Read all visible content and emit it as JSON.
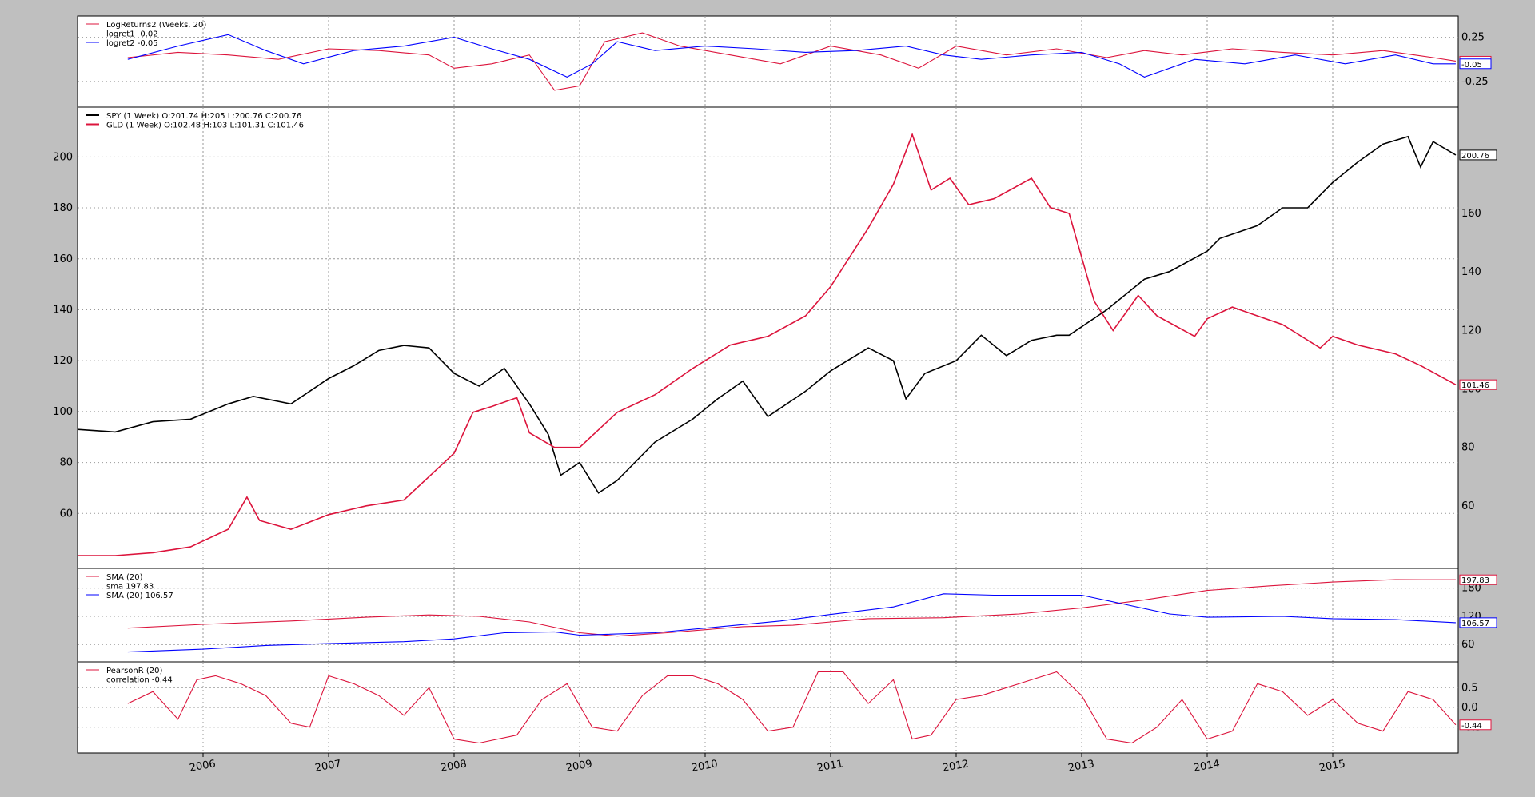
{
  "colors": {
    "red": "#dc143c",
    "blue": "#0000ff",
    "black": "#000000",
    "background": "#bfbfbf",
    "panel": "#ffffff"
  },
  "chart_data": [
    {
      "type": "line",
      "panel": "logreturns",
      "legend": [
        "LogReturns2 (Weeks, 20)",
        "logret1 -0.02",
        "logret2 -0.05"
      ],
      "y_ticks": [
        "0.25",
        "-0.25"
      ],
      "ylim": [
        -0.45,
        0.4
      ],
      "last_value_labels": [
        "-0.02",
        "-0.05"
      ],
      "series": [
        {
          "name": "logret1",
          "color": "#dc143c",
          "x": [
            2005.4,
            2005.8,
            2006.2,
            2006.6,
            2007.0,
            2007.4,
            2007.8,
            2008.0,
            2008.3,
            2008.6,
            2008.8,
            2009.0,
            2009.2,
            2009.5,
            2009.8,
            2010.2,
            2010.6,
            2011.0,
            2011.4,
            2011.7,
            2012.0,
            2012.4,
            2012.8,
            2013.2,
            2013.5,
            2013.8,
            2014.2,
            2014.6,
            2015.0,
            2015.4,
            2015.8,
            2015.98
          ],
          "values": [
            0.02,
            0.08,
            0.05,
            0.0,
            0.12,
            0.1,
            0.05,
            -0.1,
            -0.05,
            0.05,
            -0.35,
            -0.3,
            0.2,
            0.3,
            0.15,
            0.05,
            -0.05,
            0.15,
            0.05,
            -0.1,
            0.15,
            0.05,
            0.12,
            0.02,
            0.1,
            0.05,
            0.12,
            0.08,
            0.05,
            0.1,
            0.02,
            -0.02
          ]
        },
        {
          "name": "logret2",
          "color": "#0000ff",
          "x": [
            2005.4,
            2005.8,
            2006.2,
            2006.5,
            2006.8,
            2007.2,
            2007.6,
            2008.0,
            2008.3,
            2008.6,
            2008.9,
            2009.1,
            2009.3,
            2009.6,
            2010.0,
            2010.4,
            2010.8,
            2011.2,
            2011.6,
            2011.9,
            2012.2,
            2012.6,
            2013.0,
            2013.3,
            2013.5,
            2013.9,
            2014.3,
            2014.7,
            2015.1,
            2015.5,
            2015.8,
            2015.98
          ],
          "values": [
            0.0,
            0.15,
            0.28,
            0.1,
            -0.05,
            0.1,
            0.15,
            0.25,
            0.12,
            0.0,
            -0.2,
            -0.05,
            0.2,
            0.1,
            0.15,
            0.12,
            0.08,
            0.1,
            0.15,
            0.05,
            0.0,
            0.05,
            0.08,
            -0.05,
            -0.2,
            0.0,
            -0.05,
            0.05,
            -0.05,
            0.05,
            -0.05,
            -0.05
          ]
        }
      ]
    },
    {
      "type": "line",
      "panel": "prices",
      "legend": [
        "SPY (1 Week) O:201.74 H:205 L:200.76 C:200.76",
        "GLD (1 Week) O:102.48 H:103 L:101.31 C:101.46"
      ],
      "y_ticks_left": [
        "200",
        "180",
        "160",
        "140",
        "120",
        "100",
        "80",
        "60"
      ],
      "y_ticks_right": [
        "180",
        "160",
        "140",
        "120",
        "100",
        "80",
        "60"
      ],
      "ylim_left": [
        40,
        218
      ],
      "ylim_right": [
        40,
        195
      ],
      "last_value_labels": [
        "200.76",
        "101.46"
      ],
      "series": [
        {
          "name": "SPY",
          "color": "#000000",
          "x": [
            2005.0,
            2005.3,
            2005.6,
            2005.9,
            2006.2,
            2006.4,
            2006.7,
            2007.0,
            2007.2,
            2007.4,
            2007.6,
            2007.8,
            2008.0,
            2008.2,
            2008.4,
            2008.6,
            2008.75,
            2008.85,
            2009.0,
            2009.15,
            2009.3,
            2009.6,
            2009.9,
            2010.1,
            2010.3,
            2010.5,
            2010.8,
            2011.0,
            2011.3,
            2011.5,
            2011.6,
            2011.75,
            2012.0,
            2012.2,
            2012.4,
            2012.6,
            2012.8,
            2012.9,
            2013.2,
            2013.5,
            2013.7,
            2014.0,
            2014.1,
            2014.4,
            2014.6,
            2014.8,
            2015.0,
            2015.2,
            2015.4,
            2015.6,
            2015.7,
            2015.8,
            2015.98
          ],
          "values": [
            93,
            92,
            96,
            97,
            103,
            106,
            103,
            113,
            118,
            124,
            126,
            125,
            115,
            110,
            117,
            103,
            91,
            75,
            80,
            68,
            73,
            88,
            97,
            105,
            112,
            98,
            108,
            116,
            125,
            120,
            105,
            115,
            120,
            130,
            122,
            128,
            130,
            130,
            140,
            152,
            155,
            163,
            168,
            173,
            180,
            180,
            190,
            198,
            205,
            208,
            196,
            206,
            200.76
          ]
        },
        {
          "name": "GLD",
          "color": "#dc143c",
          "x": [
            2005.0,
            2005.3,
            2005.6,
            2005.9,
            2006.2,
            2006.35,
            2006.45,
            2006.7,
            2007.0,
            2007.3,
            2007.6,
            2007.8,
            2008.0,
            2008.15,
            2008.3,
            2008.5,
            2008.6,
            2008.8,
            2009.0,
            2009.3,
            2009.6,
            2009.9,
            2010.2,
            2010.5,
            2010.8,
            2011.0,
            2011.3,
            2011.5,
            2011.65,
            2011.8,
            2011.95,
            2012.1,
            2012.3,
            2012.6,
            2012.75,
            2012.9,
            2013.1,
            2013.25,
            2013.45,
            2013.6,
            2013.9,
            2014.0,
            2014.2,
            2014.4,
            2014.6,
            2014.9,
            2015.0,
            2015.2,
            2015.5,
            2015.7,
            2015.98
          ],
          "values": [
            43,
            43,
            44,
            46,
            52,
            63,
            55,
            52,
            57,
            60,
            62,
            70,
            78,
            92,
            94,
            97,
            85,
            80,
            80,
            92,
            98,
            107,
            115,
            118,
            125,
            135,
            155,
            170,
            187,
            168,
            172,
            163,
            165,
            172,
            162,
            160,
            130,
            120,
            132,
            125,
            118,
            124,
            128,
            125,
            122,
            114,
            118,
            115,
            112,
            108,
            101.46
          ]
        }
      ]
    },
    {
      "type": "line",
      "panel": "sma",
      "legend": [
        "SMA (20)",
        "sma 197.83",
        "SMA (20) 106.57"
      ],
      "y_ticks": [
        "180",
        "120",
        "60"
      ],
      "ylim": [
        40,
        205
      ],
      "last_value_labels": [
        "197.83",
        "106.57"
      ],
      "series": [
        {
          "name": "sma",
          "color": "#dc143c",
          "x": [
            2005.4,
            2006.0,
            2006.7,
            2007.3,
            2007.8,
            2008.2,
            2008.6,
            2009.0,
            2009.3,
            2009.7,
            2010.3,
            2010.7,
            2011.3,
            2011.9,
            2012.5,
            2013.0,
            2013.5,
            2014.0,
            2014.5,
            2015.0,
            2015.5,
            2015.98
          ],
          "values": [
            95,
            103,
            110,
            118,
            123,
            120,
            108,
            85,
            78,
            85,
            98,
            101,
            115,
            117,
            125,
            138,
            155,
            175,
            185,
            193,
            198,
            197.83
          ]
        },
        {
          "name": "SMA (20)",
          "color": "#0000ff",
          "x": [
            2005.4,
            2006.0,
            2006.5,
            2007.0,
            2007.6,
            2008.0,
            2008.4,
            2008.8,
            2009.0,
            2009.6,
            2010.0,
            2010.6,
            2011.0,
            2011.5,
            2011.9,
            2012.3,
            2012.7,
            2013.0,
            2013.3,
            2013.7,
            2014.0,
            2014.6,
            2015.0,
            2015.5,
            2015.98
          ],
          "values": [
            44,
            50,
            58,
            62,
            66,
            72,
            85,
            87,
            80,
            85,
            95,
            110,
            124,
            140,
            168,
            165,
            165,
            165,
            148,
            125,
            118,
            120,
            115,
            113,
            106.57
          ]
        }
      ]
    },
    {
      "type": "line",
      "panel": "pearson",
      "legend": [
        "PearsonR (20)",
        "correlation -0.44"
      ],
      "y_ticks": [
        "0.5",
        "0.0",
        "-0.5"
      ],
      "ylim": [
        -0.95,
        0.95
      ],
      "last_value_labels": [
        "-0.44"
      ],
      "series": [
        {
          "name": "correlation",
          "color": "#dc143c",
          "x": [
            2005.4,
            2005.6,
            2005.8,
            2005.95,
            2006.1,
            2006.3,
            2006.5,
            2006.7,
            2006.85,
            2007.0,
            2007.2,
            2007.4,
            2007.6,
            2007.8,
            2008.0,
            2008.2,
            2008.5,
            2008.7,
            2008.9,
            2009.1,
            2009.3,
            2009.5,
            2009.7,
            2009.9,
            2010.1,
            2010.3,
            2010.5,
            2010.7,
            2010.9,
            2011.1,
            2011.3,
            2011.5,
            2011.65,
            2011.8,
            2012.0,
            2012.2,
            2012.4,
            2012.6,
            2012.8,
            2013.0,
            2013.2,
            2013.4,
            2013.6,
            2013.8,
            2014.0,
            2014.2,
            2014.4,
            2014.6,
            2014.8,
            2015.0,
            2015.2,
            2015.4,
            2015.6,
            2015.8,
            2015.98
          ],
          "values": [
            0.1,
            0.4,
            -0.3,
            0.7,
            0.8,
            0.6,
            0.3,
            -0.4,
            -0.5,
            0.8,
            0.6,
            0.3,
            -0.2,
            0.5,
            -0.8,
            -0.9,
            -0.7,
            0.2,
            0.6,
            -0.5,
            -0.6,
            0.3,
            0.8,
            0.8,
            0.6,
            0.2,
            -0.6,
            -0.5,
            0.9,
            0.9,
            0.1,
            0.7,
            -0.8,
            -0.7,
            0.2,
            0.3,
            0.5,
            0.7,
            0.9,
            0.3,
            -0.8,
            -0.9,
            -0.5,
            0.2,
            -0.8,
            -0.6,
            0.6,
            0.4,
            -0.2,
            0.2,
            -0.4,
            -0.6,
            0.4,
            0.2,
            -0.44
          ]
        }
      ]
    }
  ],
  "x_axis": {
    "ticks": [
      "2006",
      "2007",
      "2008",
      "2009",
      "2010",
      "2011",
      "2012",
      "2013",
      "2014",
      "2015"
    ],
    "xlim": [
      2005.0,
      2016.0
    ]
  }
}
